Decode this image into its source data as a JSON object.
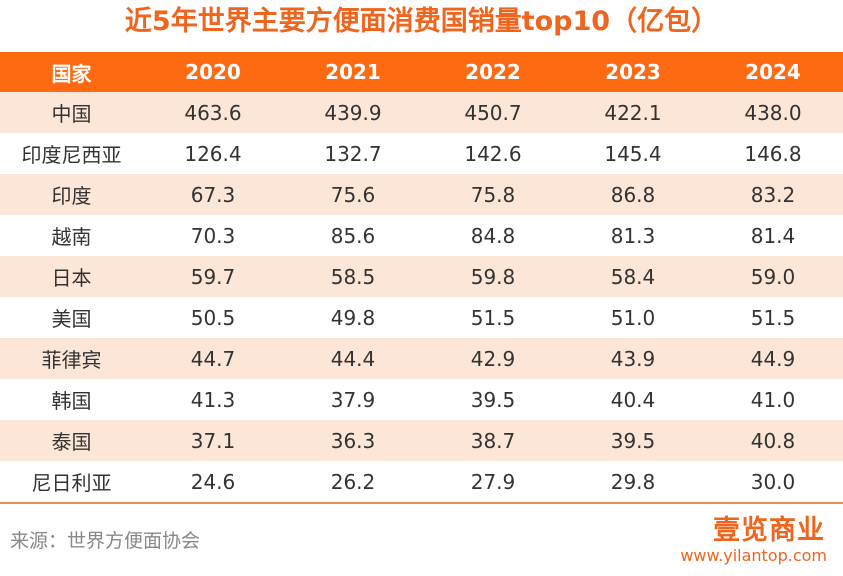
{
  "header": {
    "title": "近5年世界主要方便面消费国销量top10（亿包）"
  },
  "table": {
    "columns": [
      "国家",
      "2020",
      "2021",
      "2022",
      "2023",
      "2024"
    ],
    "rows": [
      [
        "中国",
        "463.6",
        "439.9",
        "450.7",
        "422.1",
        "438.0"
      ],
      [
        "印度尼西亚",
        "126.4",
        "132.7",
        "142.6",
        "145.4",
        "146.8"
      ],
      [
        "印度",
        "67.3",
        "75.6",
        "75.8",
        "86.8",
        "83.2"
      ],
      [
        "越南",
        "70.3",
        "85.6",
        "84.8",
        "81.3",
        "81.4"
      ],
      [
        "日本",
        "59.7",
        "58.5",
        "59.8",
        "58.4",
        "59.0"
      ],
      [
        "美国",
        "50.5",
        "49.8",
        "51.5",
        "51.0",
        "51.5"
      ],
      [
        "菲律宾",
        "44.7",
        "44.4",
        "42.9",
        "43.9",
        "44.9"
      ],
      [
        "韩国",
        "41.3",
        "37.9",
        "39.5",
        "40.4",
        "41.0"
      ],
      [
        "泰国",
        "37.1",
        "36.3",
        "38.7",
        "39.5",
        "40.8"
      ],
      [
        "尼日利亚",
        "24.6",
        "26.2",
        "27.9",
        "29.8",
        "30.0"
      ]
    ]
  },
  "footer": {
    "source": "来源：世界方便面协会",
    "logo": "壹览商业",
    "url": "www.yilantop.com"
  }
}
